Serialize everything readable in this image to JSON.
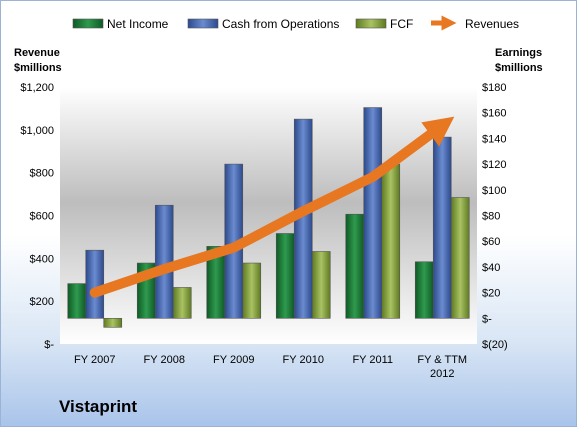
{
  "company": "Vistaprint",
  "chart_data": {
    "type": "bar",
    "categories": [
      "FY 2007",
      "FY 2008",
      "FY 2009",
      "FY 2010",
      "FY 2011",
      "FY & TTM 2012"
    ],
    "left_axis": {
      "title_lines": [
        "Revenue",
        "$millions"
      ],
      "range": [
        0,
        1200
      ],
      "ticks": [
        0,
        200,
        400,
        600,
        800,
        1000,
        1200
      ],
      "tick_labels": [
        "$-",
        "$200",
        "$400",
        "$600",
        "$800",
        "$1,000",
        "$1,200"
      ]
    },
    "right_axis": {
      "title_lines": [
        "Earnings",
        "$millions"
      ],
      "range": [
        -20,
        180
      ],
      "ticks": [
        -20,
        0,
        20,
        40,
        60,
        80,
        100,
        120,
        140,
        160,
        180
      ],
      "tick_labels": [
        "$(20)",
        "$-",
        "$20",
        "$40",
        "$60",
        "$80",
        "$100",
        "$120",
        "$140",
        "$160",
        "$180"
      ]
    },
    "series": [
      {
        "name": "Net Income",
        "axis": "right",
        "kind": "bar",
        "color": "#1e7a3a",
        "values": [
          27,
          43,
          56,
          66,
          81,
          44
        ]
      },
      {
        "name": "Cash from Operations",
        "axis": "right",
        "kind": "bar",
        "color": "#3f5fa8",
        "values": [
          53,
          88,
          120,
          155,
          164,
          141
        ]
      },
      {
        "name": "FCF",
        "axis": "right",
        "kind": "bar",
        "color": "#7f9a3a",
        "values": [
          -7,
          24,
          43,
          52,
          120,
          94
        ]
      },
      {
        "name": "Revenues",
        "axis": "left",
        "kind": "line",
        "color": "#e87722",
        "values": [
          240,
          350,
          450,
          620,
          780,
          1020
        ]
      }
    ],
    "legend_position": "top",
    "grid": false
  }
}
